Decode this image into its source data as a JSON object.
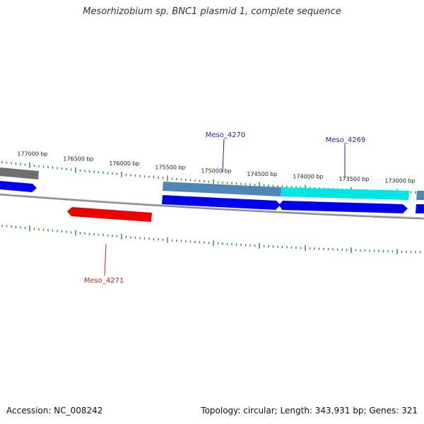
{
  "title": "Mesorhizobium sp. BNC1 plasmid 1, complete sequence",
  "footer": {
    "accession": "Accession: NC_008242",
    "summary": "Topology: circular; Length: 343,931 bp; Genes: 321"
  },
  "colors": {
    "backbone": "#8a8a8a",
    "tick": "#2a8a2a",
    "forward_cds": "#0000ee",
    "reverse_cds": "#ee0000",
    "gene_gray": "#6f6f6f",
    "gene_steel": "#4f86b5",
    "gene_cyan": "#00e5e5",
    "label_blue": "#1f1fa8",
    "label_red": "#cc2222"
  },
  "tick_labels": [
    {
      "bp": 177000,
      "text": "177000 bp"
    },
    {
      "bp": 176500,
      "text": "176500 bp"
    },
    {
      "bp": 176000,
      "text": "176000 bp"
    },
    {
      "bp": 175500,
      "text": "175500 bp"
    },
    {
      "bp": 175000,
      "text": "175000 bp"
    },
    {
      "bp": 174500,
      "text": "174500 bp"
    },
    {
      "bp": 174000,
      "text": "174000 bp"
    },
    {
      "bp": 173500,
      "text": "173500 bp"
    },
    {
      "bp": 173000,
      "text": "173000 bp"
    }
  ],
  "gene_labels": [
    {
      "text": "Meso_4270",
      "color": "#1f1fa8"
    },
    {
      "text": "Meso_4269",
      "color": "#1f1fa8"
    },
    {
      "text": "Meso_4271",
      "color": "#cc2222"
    }
  ]
}
